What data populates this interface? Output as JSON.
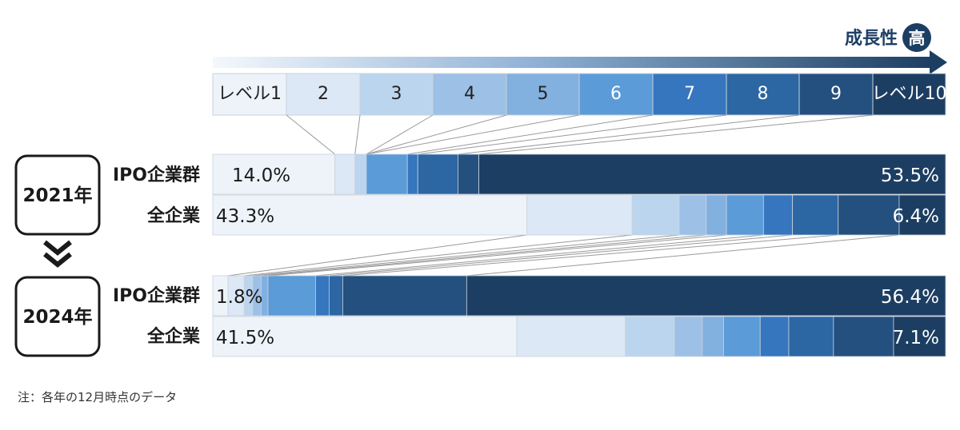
{
  "chart_data": {
    "type": "bar",
    "stacked": true,
    "orientation": "horizontal",
    "normalized_to_percent": true,
    "levels": [
      "レベル1",
      "2",
      "3",
      "4",
      "5",
      "6",
      "7",
      "8",
      "9",
      "レベル10"
    ],
    "level_colors": [
      "#eef3f9",
      "#dce8f5",
      "#bcd5ee",
      "#9dc0e6",
      "#82b0df",
      "#5b9bd7",
      "#3576be",
      "#2c66a3",
      "#24507f",
      "#1d3e63"
    ],
    "growth_label": "成長性",
    "growth_badge": "高",
    "groups": [
      {
        "year": "2021年",
        "series": [
          {
            "name": "IPO企業群",
            "values": [
              14.0,
              2.3,
              1.3,
              0,
              0,
              4.7,
              1.2,
              4.6,
              2.4,
              53.5
            ]
          },
          {
            "name": "全企業",
            "values": [
              43.3,
              14.5,
              6.5,
              3.7,
              2.8,
              5.1,
              4.0,
              6.3,
              8.4,
              6.4
            ]
          }
        ]
      },
      {
        "year": "2024年",
        "series": [
          {
            "name": "IPO企業群",
            "values": [
              1.8,
              1.9,
              1.0,
              1.0,
              0.8,
              5.6,
              1.6,
              1.6,
              14.6,
              56.4
            ]
          },
          {
            "name": "全企業",
            "values": [
              41.5,
              14.8,
              6.7,
              3.8,
              2.9,
              5.0,
              3.9,
              6.1,
              8.2,
              7.1
            ]
          }
        ]
      }
    ],
    "labels": [
      {
        "group": 0,
        "series": 0,
        "first": "14.0%",
        "last": "53.5%"
      },
      {
        "group": 0,
        "series": 1,
        "first": "43.3%",
        "last": "6.4%"
      },
      {
        "group": 1,
        "series": 0,
        "first": "1.8%",
        "last": "56.4%"
      },
      {
        "group": 1,
        "series": 1,
        "first": "41.5%",
        "last": "7.1%"
      }
    ],
    "note": "注：各年の12月時点のデータ"
  }
}
